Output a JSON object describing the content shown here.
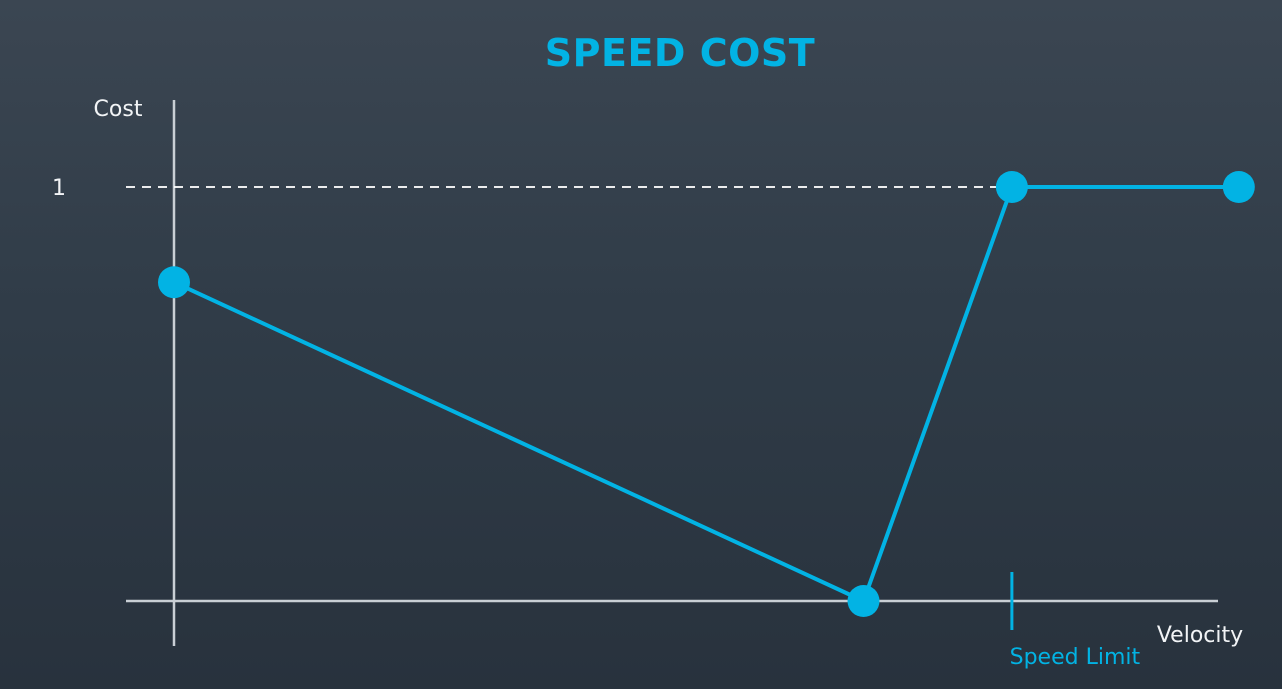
{
  "chart_data": {
    "type": "line",
    "title": "SPEED COST",
    "xlabel": "Velocity",
    "ylabel": "Cost",
    "y_ticks": [
      {
        "value": 1,
        "label": "1"
      }
    ],
    "xlim": [
      0,
      1.25
    ],
    "ylim": [
      0,
      1.1
    ],
    "grid": false,
    "reference_lines": [
      {
        "axis": "y",
        "value": 1,
        "style": "dashed",
        "color": "#ffffff"
      }
    ],
    "x_markers": [
      {
        "value": 0.96,
        "label": "Speed Limit",
        "color": "#02b3e4"
      }
    ],
    "series": [
      {
        "color": "#02b3e4",
        "markers": true,
        "points": [
          {
            "x": 0.0,
            "y": 0.77
          },
          {
            "x": 0.79,
            "y": 0.0
          },
          {
            "x": 0.96,
            "y": 1.0
          },
          {
            "x": 1.22,
            "y": 1.0
          }
        ]
      }
    ]
  },
  "colors": {
    "accent": "#02b3e4",
    "axis": "#c9cfd5",
    "text": "#f2f4f6"
  }
}
